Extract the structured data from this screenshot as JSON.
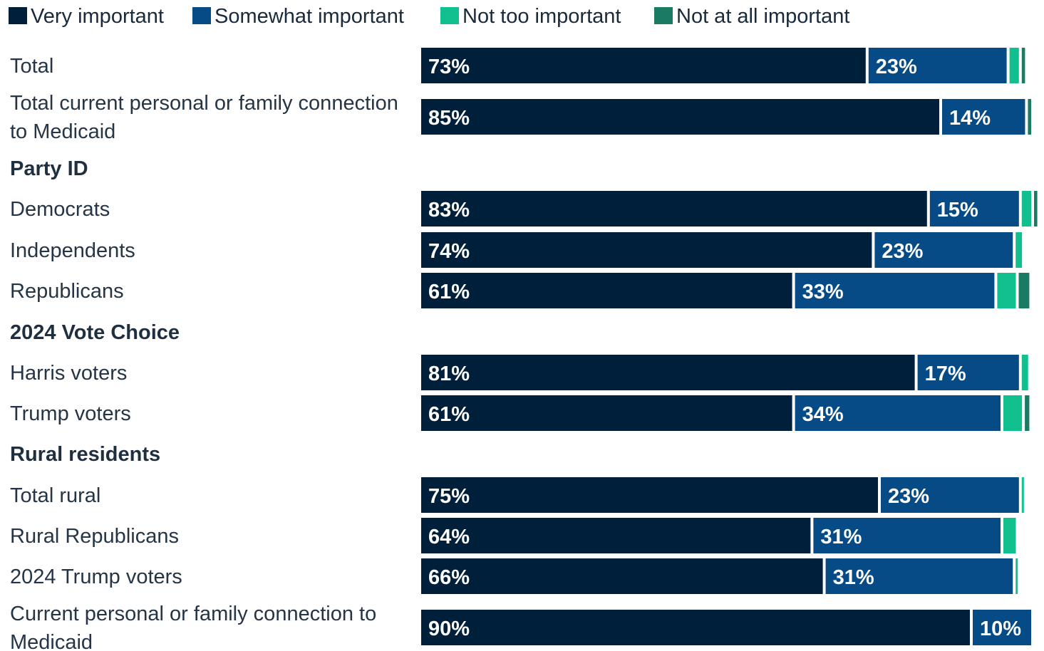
{
  "chart_data": {
    "type": "bar",
    "orientation": "horizontal",
    "stacked": true,
    "xlim": [
      0,
      100
    ],
    "grid": false,
    "legend_position": "top-left",
    "series": [
      {
        "name": "Very important",
        "color": "#001f3a"
      },
      {
        "name": "Somewhat important",
        "color": "#064b85"
      },
      {
        "name": "Not too important",
        "color": "#12c08f"
      },
      {
        "name": "Not at all important",
        "color": "#1b7a62"
      }
    ],
    "rows": [
      {
        "label": "Total",
        "values": [
          73,
          23,
          2,
          1
        ],
        "labels": [
          "73%",
          "23%",
          "",
          ""
        ]
      },
      {
        "label": "Total current personal or family connection to Medicaid",
        "values": [
          85,
          14,
          0,
          1
        ],
        "labels": [
          "85%",
          "14%",
          "",
          ""
        ]
      },
      {
        "group": "Party ID"
      },
      {
        "label": "Democrats",
        "values": [
          83,
          15,
          2,
          1
        ],
        "labels": [
          "83%",
          "15%",
          "",
          ""
        ]
      },
      {
        "label": "Independents",
        "values": [
          74,
          23,
          1.5,
          0
        ],
        "labels": [
          "74%",
          "23%",
          "",
          ""
        ]
      },
      {
        "label": "Republicans",
        "values": [
          61,
          33,
          3.5,
          2.2
        ],
        "labels": [
          "61%",
          "33%",
          "",
          ""
        ]
      },
      {
        "group": "2024 Vote Choice"
      },
      {
        "label": "Harris voters",
        "values": [
          81,
          17,
          1.5,
          0
        ],
        "labels": [
          "81%",
          "17%",
          "",
          ""
        ]
      },
      {
        "label": "Trump voters",
        "values": [
          61,
          34,
          3.5,
          1.2
        ],
        "labels": [
          "61%",
          "34%",
          "",
          ""
        ]
      },
      {
        "group": "Rural residents"
      },
      {
        "label": "Total rural",
        "values": [
          75,
          23,
          0.5,
          0
        ],
        "labels": [
          "75%",
          "23%",
          "",
          ""
        ]
      },
      {
        "label": "Rural Republicans",
        "values": [
          64,
          31,
          2.5,
          0
        ],
        "labels": [
          "64%",
          "31%",
          "",
          ""
        ]
      },
      {
        "label": "2024 Trump voters",
        "values": [
          66,
          31,
          0.5,
          0
        ],
        "labels": [
          "66%",
          "31%",
          "",
          ""
        ]
      },
      {
        "label": "Current personal or family connection to Medicaid",
        "values": [
          90,
          10,
          0,
          0
        ],
        "labels": [
          "90%",
          "10%",
          "",
          ""
        ]
      }
    ]
  }
}
